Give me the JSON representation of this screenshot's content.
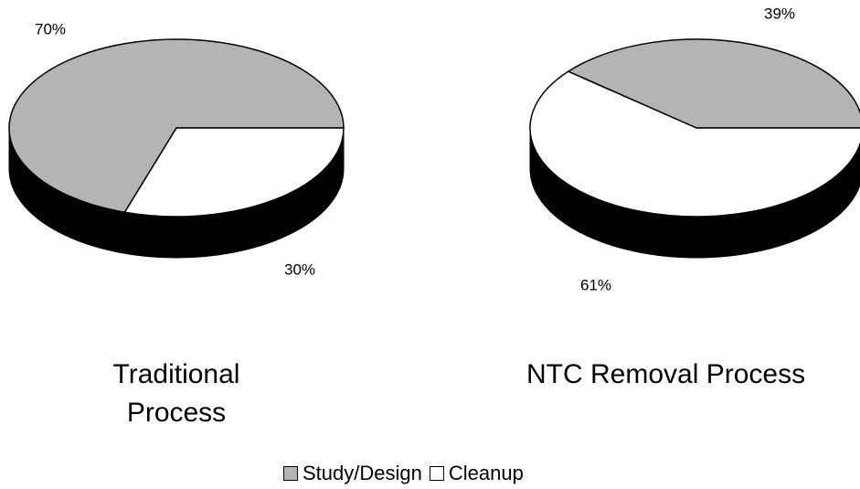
{
  "chart_data": [
    {
      "type": "pie",
      "title": "Traditional Process",
      "categories": [
        "Study/Design",
        "Cleanup"
      ],
      "values": [
        70,
        30
      ],
      "value_labels": [
        "70%",
        "30%"
      ],
      "colors": [
        "#b4b4b4",
        "#ffffff"
      ]
    },
    {
      "type": "pie",
      "title": "NTC Removal Process",
      "categories": [
        "Study/Design",
        "Cleanup"
      ],
      "values": [
        39,
        61
      ],
      "value_labels": [
        "39%",
        "61%"
      ],
      "colors": [
        "#b4b4b4",
        "#ffffff"
      ]
    }
  ]
}
